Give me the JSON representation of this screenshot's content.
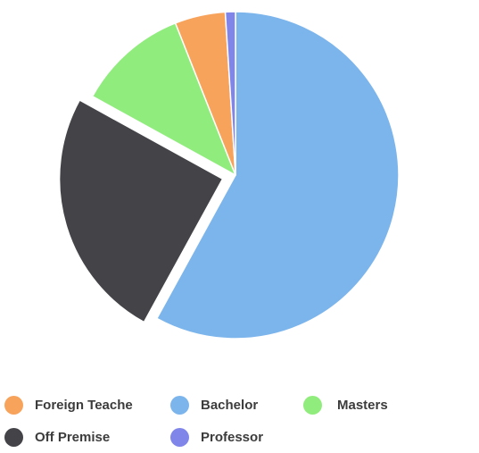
{
  "chart_data": {
    "type": "pie",
    "title": "",
    "legend_position": "bottom",
    "slices": [
      {
        "label": "Bachelor",
        "value": 58.0,
        "color": "#7cb5ec",
        "exploded": false
      },
      {
        "label": "Off Premise",
        "value": 25.0,
        "color": "#434348",
        "exploded": true
      },
      {
        "label": "Masters",
        "value": 11.0,
        "color": "#90ed7d",
        "exploded": false
      },
      {
        "label": "Foreign Teache",
        "value": 5.0,
        "color": "#f7a35c",
        "exploded": false
      },
      {
        "label": "Professor",
        "value": 1.0,
        "color": "#8085e9",
        "exploded": false
      }
    ]
  },
  "legend": {
    "items": [
      {
        "label": "Foreign Teache",
        "color": "#f7a35c"
      },
      {
        "label": "Bachelor",
        "color": "#7cb5ec"
      },
      {
        "label": "Masters",
        "color": "#90ed7d"
      },
      {
        "label": "Off Premise",
        "color": "#434348"
      },
      {
        "label": "Professor",
        "color": "#8085e9"
      }
    ]
  }
}
